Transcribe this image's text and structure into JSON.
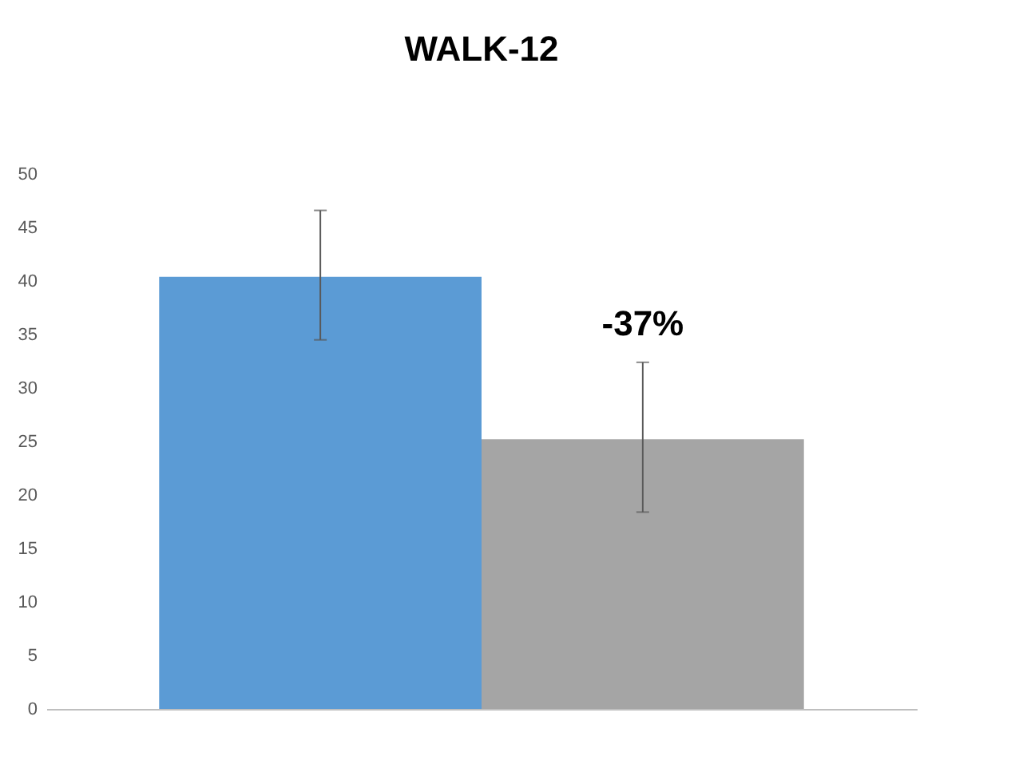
{
  "chart_data": {
    "type": "bar",
    "title": "WALK-12",
    "categories": [
      null,
      null
    ],
    "values": [
      40.4,
      25.2
    ],
    "colors": [
      "#5b9bd5",
      "#a5a5a5"
    ],
    "errors": [
      [
        34.5,
        46.6
      ],
      [
        18.4,
        32.4
      ]
    ],
    "ylim": [
      0,
      50
    ],
    "yticks": [
      0,
      5,
      10,
      15,
      20,
      25,
      30,
      35,
      40,
      45,
      50
    ],
    "grid": false,
    "annotations": [
      "-37%"
    ]
  }
}
